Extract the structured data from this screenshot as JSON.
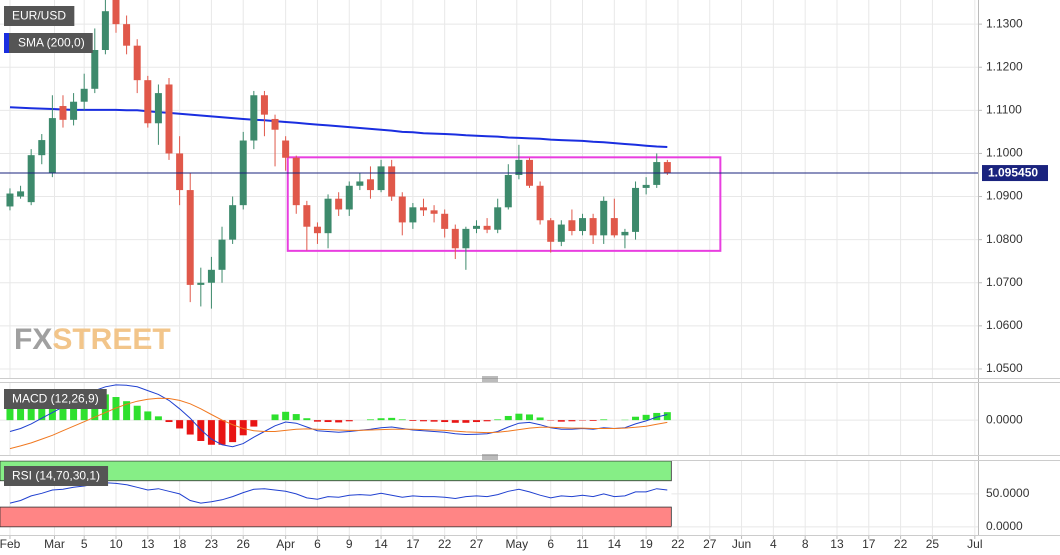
{
  "chart_data": [
    {
      "type": "candlestick",
      "title": "EUR/USD",
      "up_color": "#3d8a6c",
      "down_color": "#e0584a",
      "open": [
        1.0877,
        1.09,
        1.0887,
        1.0996,
        1.0954,
        1.111,
        1.1078,
        1.112,
        1.115,
        1.124,
        1.1356,
        1.13,
        1.125,
        1.117,
        1.107,
        1.116,
        1.1,
        1.0915,
        1.0695,
        1.07,
        1.073,
        1.08,
        1.088,
        1.103,
        1.1135,
        1.108,
        1.103,
        1.099,
        1.088,
        1.083,
        1.0815,
        1.0895,
        1.087,
        1.0925,
        1.094,
        1.0915,
        1.097,
        1.09,
        1.084,
        1.0875,
        1.0868,
        1.086,
        1.0825,
        1.078,
        1.0825,
        1.0832,
        1.0823,
        1.0875,
        1.095,
        1.0985,
        1.0925,
        1.0845,
        1.0795,
        1.0845,
        1.082,
        1.085,
        1.081,
        1.085,
        1.081,
        1.0818,
        1.092,
        1.0927,
        1.098
      ],
      "high": [
        1.0919,
        1.0925,
        1.101,
        1.1045,
        1.1135,
        1.1135,
        1.114,
        1.1185,
        1.129,
        1.1356,
        1.1356,
        1.132,
        1.1265,
        1.118,
        1.116,
        1.1175,
        1.104,
        1.0955,
        1.0735,
        1.076,
        1.083,
        1.09,
        1.105,
        1.1145,
        1.1145,
        1.109,
        1.104,
        1.0995,
        1.089,
        1.084,
        1.0905,
        1.091,
        1.0935,
        1.0955,
        1.097,
        1.0985,
        1.0985,
        1.091,
        1.0885,
        1.0895,
        1.088,
        1.087,
        1.0835,
        1.083,
        1.0845,
        1.085,
        1.0895,
        1.0975,
        1.102,
        1.099,
        1.0935,
        1.085,
        1.0845,
        1.087,
        1.086,
        1.086,
        1.09,
        1.0895,
        1.0825,
        1.0935,
        1.0945,
        1.1,
        1.0985
      ],
      "low": [
        1.0868,
        1.0895,
        1.088,
        1.0975,
        1.0945,
        1.106,
        1.1065,
        1.11,
        1.114,
        1.123,
        1.128,
        1.123,
        1.114,
        1.106,
        1.102,
        1.0985,
        1.088,
        1.0655,
        1.0645,
        1.064,
        1.07,
        1.079,
        1.087,
        1.101,
        1.104,
        1.097,
        1.096,
        1.086,
        1.0775,
        1.079,
        1.078,
        1.0855,
        1.0855,
        1.0915,
        1.0895,
        1.091,
        1.089,
        1.081,
        1.0825,
        1.0855,
        1.084,
        1.0805,
        1.0755,
        1.073,
        1.0815,
        1.0815,
        1.0815,
        1.087,
        1.094,
        1.092,
        1.0835,
        1.077,
        1.0785,
        1.081,
        1.081,
        1.079,
        1.079,
        1.0805,
        1.078,
        1.08,
        1.0905,
        1.092,
        1.095
      ],
      "close": [
        1.0907,
        1.0912,
        1.0996,
        1.1031,
        1.1082,
        1.1078,
        1.112,
        1.115,
        1.124,
        1.133,
        1.13,
        1.125,
        1.117,
        1.107,
        1.114,
        1.1,
        1.0915,
        1.0695,
        1.07,
        1.073,
        1.08,
        1.088,
        1.103,
        1.1135,
        1.109,
        1.1055,
        1.099,
        1.088,
        1.083,
        1.0815,
        1.0895,
        1.087,
        1.0925,
        1.0935,
        1.0915,
        1.097,
        1.09,
        1.084,
        1.0875,
        1.0868,
        1.086,
        1.0825,
        1.078,
        1.0825,
        1.0832,
        1.0823,
        1.0875,
        1.095,
        1.0985,
        1.0925,
        1.0845,
        1.0795,
        1.0835,
        1.082,
        1.085,
        1.081,
        1.089,
        1.081,
        1.0818,
        1.092,
        1.0927,
        1.098,
        1.0955
      ],
      "overlays": [
        {
          "name": "SMA (200,0)",
          "color": "#1a2ee0",
          "values": [
            1.1107,
            1.1106,
            1.1105,
            1.1104,
            1.1103,
            1.1102,
            1.1101,
            1.1101,
            1.1101,
            1.1101,
            1.1101,
            1.11,
            1.11,
            1.1098,
            1.1096,
            1.1094,
            1.1092,
            1.109,
            1.1088,
            1.1086,
            1.1084,
            1.1082,
            1.108,
            1.1078,
            1.1077,
            1.1075,
            1.1073,
            1.1071,
            1.1069,
            1.1067,
            1.1065,
            1.1063,
            1.1061,
            1.1059,
            1.1057,
            1.1055,
            1.1053,
            1.105,
            1.1049,
            1.1047,
            1.1046,
            1.1045,
            1.1044,
            1.1042,
            1.1041,
            1.104,
            1.1039,
            1.1037,
            1.1036,
            1.1035,
            1.1034,
            1.1032,
            1.1031,
            1.103,
            1.1029,
            1.1027,
            1.1026,
            1.1024,
            1.1022,
            1.102,
            1.1018,
            1.1016,
            1.1015
          ]
        }
      ],
      "last_price": {
        "value": 1.09545,
        "label": "1.095450",
        "color": "#1a237e"
      },
      "box": {
        "x": [
          26.2,
          67
        ],
        "y": [
          1.0774,
          1.0991
        ],
        "color": "#e83ee0"
      },
      "watermark": [
        "FX",
        "STREET"
      ],
      "xlim": [
        -0.94,
        91.3
      ],
      "xticks": [
        {
          "value": 0,
          "label": "Feb"
        },
        {
          "value": 4.2,
          "label": "Mar"
        },
        {
          "value": 7,
          "label": "5"
        },
        {
          "value": 10,
          "label": "10"
        },
        {
          "value": 13,
          "label": "13"
        },
        {
          "value": 16,
          "label": "18"
        },
        {
          "value": 19,
          "label": "23"
        },
        {
          "value": 22,
          "label": "26"
        },
        {
          "value": 26,
          "label": "Apr"
        },
        {
          "value": 29,
          "label": "6"
        },
        {
          "value": 32,
          "label": "9"
        },
        {
          "value": 35,
          "label": "14"
        },
        {
          "value": 38,
          "label": "17"
        },
        {
          "value": 41,
          "label": "22"
        },
        {
          "value": 44,
          "label": "27"
        },
        {
          "value": 47.8,
          "label": "May"
        },
        {
          "value": 51,
          "label": "6"
        },
        {
          "value": 54,
          "label": "11"
        },
        {
          "value": 57,
          "label": "14"
        },
        {
          "value": 60,
          "label": "19"
        },
        {
          "value": 63,
          "label": "22"
        },
        {
          "value": 66,
          "label": "27"
        },
        {
          "value": 69,
          "label": "Jun"
        },
        {
          "value": 72,
          "label": "4"
        },
        {
          "value": 75,
          "label": "8"
        },
        {
          "value": 78,
          "label": "13"
        },
        {
          "value": 81,
          "label": "17"
        },
        {
          "value": 84,
          "label": "22"
        },
        {
          "value": 87,
          "label": "25"
        },
        {
          "value": 91,
          "label": "Jul"
        }
      ],
      "ylim": [
        1.0479,
        1.1356
      ],
      "yticks": [
        {
          "value": 1.13,
          "label": "1.1300"
        },
        {
          "value": 1.12,
          "label": "1.1200"
        },
        {
          "value": 1.11,
          "label": "1.1100"
        },
        {
          "value": 1.1,
          "label": "1.1000"
        },
        {
          "value": 1.09,
          "label": "1.0900"
        },
        {
          "value": 1.08,
          "label": "1.0800"
        },
        {
          "value": 1.07,
          "label": "1.0700"
        },
        {
          "value": 1.06,
          "label": "1.0600"
        },
        {
          "value": 1.05,
          "label": "1.0500"
        }
      ],
      "grid": true
    },
    {
      "type": "macd",
      "title": "MACD (12,26,9)",
      "ylim": [
        -0.0092,
        0.0098
      ],
      "yticks": [
        {
          "value": 0,
          "label": "0.0000"
        }
      ],
      "histogram": {
        "up_color": "#2ee02e",
        "down_color": "#e81414",
        "values": [
          0.0045,
          0.0046,
          0.005,
          0.0055,
          0.006,
          0.0063,
          0.0066,
          0.0069,
          0.007,
          0.0068,
          0.0061,
          0.005,
          0.0038,
          0.0023,
          0.001,
          -0.0005,
          -0.0022,
          -0.0038,
          -0.0055,
          -0.0065,
          -0.0065,
          -0.0058,
          -0.004,
          -0.0017,
          0.0,
          0.0015,
          0.0022,
          0.0016,
          0.0005,
          -0.0004,
          -0.0005,
          -0.0006,
          -0.0003,
          0.0,
          0.0002,
          0.0005,
          0.0006,
          0.0002,
          -0.0002,
          -0.0003,
          -0.0004,
          -0.0005,
          -0.0007,
          -0.0007,
          -0.0005,
          -0.0003,
          0.0002,
          0.0011,
          0.0017,
          0.0015,
          0.0007,
          -0.0001,
          -0.0004,
          -0.0003,
          -0.0001,
          -0.0002,
          0.0002,
          0.0,
          0.0001,
          0.0009,
          0.0014,
          0.0019,
          0.0021
        ]
      },
      "macd_line": {
        "color": "#2040d0",
        "values": [
          -0.003,
          -0.0022,
          -0.001,
          0.0005,
          0.002,
          0.0035,
          0.005,
          0.0065,
          0.0078,
          0.0088,
          0.0093,
          0.0092,
          0.0088,
          0.0078,
          0.0068,
          0.0052,
          0.003,
          0.0005,
          -0.0025,
          -0.005,
          -0.0065,
          -0.007,
          -0.0062,
          -0.0045,
          -0.003,
          -0.0015,
          -0.0005,
          -0.0008,
          -0.0018,
          -0.0028,
          -0.003,
          -0.0032,
          -0.003,
          -0.0027,
          -0.0024,
          -0.002,
          -0.0018,
          -0.0022,
          -0.0026,
          -0.0028,
          -0.003,
          -0.0032,
          -0.0036,
          -0.0038,
          -0.0037,
          -0.0036,
          -0.003,
          -0.0018,
          -0.0008,
          -0.0006,
          -0.0012,
          -0.002,
          -0.0024,
          -0.0024,
          -0.0022,
          -0.0024,
          -0.002,
          -0.0022,
          -0.002,
          -0.001,
          -0.0002,
          0.0008,
          0.0015
        ]
      },
      "signal_line": {
        "color": "#f07820",
        "values": [
          -0.0075,
          -0.0068,
          -0.006,
          -0.005,
          -0.004,
          -0.0028,
          -0.0016,
          -0.0004,
          0.0008,
          0.002,
          0.0032,
          0.0042,
          0.005,
          0.0055,
          0.0058,
          0.0057,
          0.0052,
          0.0043,
          0.003,
          0.0015,
          0.0,
          -0.0012,
          -0.0022,
          -0.0028,
          -0.003,
          -0.003,
          -0.0027,
          -0.0024,
          -0.0023,
          -0.0024,
          -0.0025,
          -0.0026,
          -0.0027,
          -0.0027,
          -0.0026,
          -0.0025,
          -0.0024,
          -0.0024,
          -0.0024,
          -0.0025,
          -0.0026,
          -0.0027,
          -0.0029,
          -0.0031,
          -0.0032,
          -0.0033,
          -0.0032,
          -0.0029,
          -0.0025,
          -0.0021,
          -0.0019,
          -0.0019,
          -0.002,
          -0.0021,
          -0.0021,
          -0.0022,
          -0.0022,
          -0.0022,
          -0.0021,
          -0.0019,
          -0.0016,
          -0.0011,
          -0.0006
        ]
      }
    },
    {
      "type": "rsi",
      "title": "RSI (14,70,30,1)",
      "ylim": [
        -12.4,
        100
      ],
      "yticks": [
        {
          "value": 50,
          "label": "50.0000"
        },
        {
          "value": 0,
          "label": "0.0000"
        }
      ],
      "bands": [
        {
          "range": [
            70,
            100
          ],
          "color": "#86ee86"
        },
        {
          "range": [
            0,
            30
          ],
          "color": "#ff8585"
        }
      ],
      "color": "#2040d0",
      "values": [
        36,
        40,
        47,
        51,
        56,
        57,
        60,
        62,
        65,
        67,
        66,
        64,
        60,
        56,
        58,
        54,
        50,
        40,
        36,
        38,
        41,
        46,
        52,
        57,
        58,
        56,
        54,
        50,
        44,
        42,
        46,
        45,
        48,
        49,
        48,
        51,
        48,
        45,
        47,
        46,
        46,
        45,
        43,
        46,
        47,
        46,
        49,
        54,
        57,
        53,
        48,
        44,
        47,
        46,
        48,
        46,
        50,
        46,
        47,
        53,
        53,
        58,
        56
      ]
    }
  ]
}
